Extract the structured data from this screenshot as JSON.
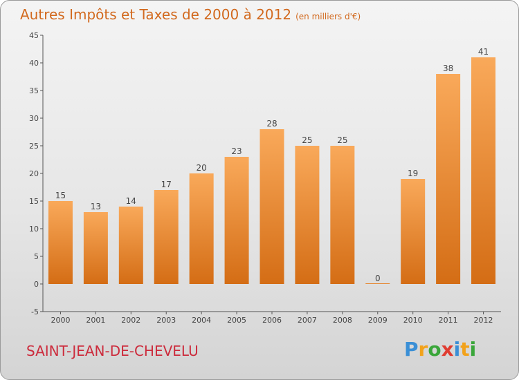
{
  "title": "Autres Impôts et Taxes de 2000 à 2012",
  "subtitle": "(en milliers d'€)",
  "commune": "SAINT-JEAN-DE-CHEVELU",
  "logo": {
    "letters": [
      {
        "ch": "P",
        "color": "#3a8fd6"
      },
      {
        "ch": "r",
        "color": "#f2a21b"
      },
      {
        "ch": "o",
        "color": "#3aa63a"
      },
      {
        "ch": "x",
        "color": "#e03c31"
      },
      {
        "ch": "i",
        "color": "#3a8fd6"
      },
      {
        "ch": "t",
        "color": "#f2a21b"
      },
      {
        "ch": "i",
        "color": "#3aa63a"
      }
    ]
  },
  "colors": {
    "bar_light": "#f9a95a",
    "bar_dark": "#d46d15",
    "title": "#d2691e",
    "commune": "#cc2b3c"
  },
  "chart_data": {
    "type": "bar",
    "categories": [
      "2000",
      "2001",
      "2002",
      "2003",
      "2004",
      "2005",
      "2006",
      "2007",
      "2008",
      "2009",
      "2010",
      "2011",
      "2012"
    ],
    "values": [
      15,
      13,
      14,
      17,
      20,
      23,
      28,
      25,
      25,
      0,
      19,
      38,
      41
    ],
    "ylim": [
      -5,
      45
    ],
    "yticks": [
      -5,
      0,
      5,
      10,
      15,
      20,
      25,
      30,
      35,
      40,
      45
    ],
    "grid": false,
    "xlabel": "",
    "ylabel": ""
  }
}
